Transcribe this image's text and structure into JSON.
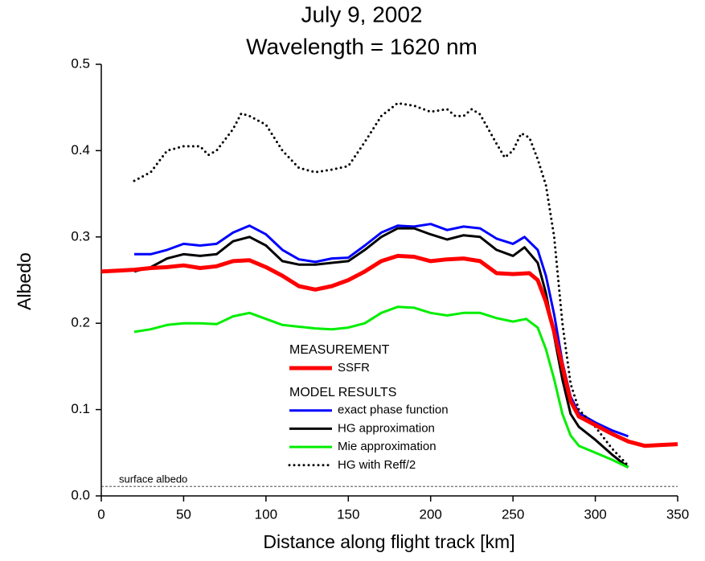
{
  "chart_data": {
    "type": "line",
    "title": "July 9, 2002",
    "subtitle": "Wavelength = 1620 nm",
    "x_label": "Distance along flight track [km]",
    "y_label": "Albedo",
    "xlim": [
      0,
      350
    ],
    "xticks": [
      0,
      50,
      100,
      150,
      200,
      250,
      300,
      350
    ],
    "ylim": [
      0,
      0.5
    ],
    "yticks": [
      {
        "value": 0,
        "label": "0.0"
      },
      0.1,
      0.2,
      0.3,
      0.4,
      0.5
    ],
    "grid": false,
    "reference_lines": [
      {
        "value": 0.011,
        "label": "surface albedo"
      }
    ],
    "series": [
      {
        "name": "SSFR",
        "group": "MEASUREMENT",
        "color": "#ff0000",
        "linewidth": 5,
        "x": [
          0,
          10,
          20,
          30,
          40,
          50,
          60,
          70,
          80,
          90,
          100,
          110,
          120,
          130,
          140,
          150,
          160,
          170,
          180,
          190,
          200,
          210,
          220,
          230,
          240,
          250,
          260,
          265,
          270,
          275,
          280,
          285,
          290,
          300,
          310,
          320,
          330,
          340,
          350
        ],
        "values": [
          0.26,
          0.261,
          0.262,
          0.264,
          0.265,
          0.267,
          0.264,
          0.266,
          0.272,
          0.273,
          0.265,
          0.255,
          0.243,
          0.239,
          0.243,
          0.25,
          0.26,
          0.272,
          0.278,
          0.277,
          0.272,
          0.274,
          0.275,
          0.272,
          0.258,
          0.257,
          0.258,
          0.25,
          0.225,
          0.19,
          0.15,
          0.11,
          0.092,
          0.082,
          0.072,
          0.063,
          0.058,
          0.059,
          0.06
        ]
      },
      {
        "name": "exact phase function",
        "group": "MODEL RESULTS",
        "color": "#0000ff",
        "linewidth": 3,
        "x": [
          20,
          30,
          40,
          50,
          60,
          70,
          80,
          90,
          100,
          110,
          120,
          130,
          140,
          150,
          160,
          170,
          180,
          190,
          200,
          210,
          220,
          230,
          240,
          250,
          257,
          265,
          270,
          275,
          280,
          285,
          290,
          300,
          310,
          320
        ],
        "values": [
          0.28,
          0.28,
          0.285,
          0.292,
          0.29,
          0.292,
          0.305,
          0.313,
          0.303,
          0.285,
          0.274,
          0.271,
          0.275,
          0.276,
          0.29,
          0.305,
          0.313,
          0.312,
          0.315,
          0.308,
          0.312,
          0.31,
          0.298,
          0.292,
          0.3,
          0.285,
          0.255,
          0.21,
          0.155,
          0.115,
          0.096,
          0.085,
          0.076,
          0.069
        ]
      },
      {
        "name": "HG approximation",
        "group": "MODEL RESULTS",
        "color": "#000000",
        "linewidth": 3,
        "x": [
          20,
          30,
          40,
          50,
          60,
          70,
          80,
          90,
          100,
          110,
          120,
          130,
          140,
          150,
          160,
          170,
          180,
          190,
          200,
          210,
          220,
          230,
          240,
          250,
          257,
          265,
          270,
          275,
          280,
          285,
          290,
          300,
          310,
          320
        ],
        "values": [
          0.26,
          0.265,
          0.275,
          0.28,
          0.278,
          0.28,
          0.295,
          0.3,
          0.29,
          0.272,
          0.268,
          0.268,
          0.27,
          0.272,
          0.285,
          0.3,
          0.31,
          0.31,
          0.303,
          0.297,
          0.302,
          0.3,
          0.285,
          0.278,
          0.288,
          0.27,
          0.235,
          0.185,
          0.135,
          0.095,
          0.08,
          0.065,
          0.048,
          0.033
        ]
      },
      {
        "name": "Mie approximation",
        "group": "MODEL RESULTS",
        "color": "#00ee00",
        "linewidth": 3,
        "x": [
          20,
          30,
          40,
          50,
          60,
          70,
          80,
          90,
          100,
          110,
          120,
          130,
          140,
          150,
          160,
          170,
          180,
          190,
          200,
          210,
          220,
          230,
          240,
          250,
          258,
          265,
          270,
          275,
          280,
          285,
          290,
          300,
          310,
          320
        ],
        "values": [
          0.19,
          0.193,
          0.198,
          0.2,
          0.2,
          0.199,
          0.208,
          0.212,
          0.205,
          0.198,
          0.196,
          0.194,
          0.193,
          0.195,
          0.2,
          0.212,
          0.219,
          0.218,
          0.212,
          0.209,
          0.212,
          0.212,
          0.206,
          0.202,
          0.205,
          0.195,
          0.17,
          0.135,
          0.095,
          0.07,
          0.058,
          0.05,
          0.042,
          0.033
        ]
      },
      {
        "name": "HG with Reff/2",
        "group": "MODEL RESULTS",
        "color": "#000000",
        "linewidth": 3,
        "linestyle": "dotted",
        "x": [
          20,
          30,
          40,
          50,
          60,
          65,
          70,
          80,
          85,
          90,
          100,
          110,
          120,
          130,
          140,
          150,
          160,
          170,
          180,
          190,
          200,
          210,
          215,
          220,
          225,
          230,
          240,
          245,
          250,
          255,
          260,
          265,
          270,
          275,
          280,
          285,
          290,
          300,
          310,
          320
        ],
        "values": [
          0.365,
          0.375,
          0.4,
          0.405,
          0.405,
          0.395,
          0.4,
          0.425,
          0.443,
          0.44,
          0.43,
          0.4,
          0.38,
          0.375,
          0.378,
          0.382,
          0.41,
          0.44,
          0.455,
          0.452,
          0.445,
          0.448,
          0.44,
          0.44,
          0.448,
          0.442,
          0.408,
          0.392,
          0.4,
          0.42,
          0.415,
          0.39,
          0.36,
          0.3,
          0.2,
          0.13,
          0.1,
          0.08,
          0.055,
          0.035
        ]
      }
    ]
  }
}
